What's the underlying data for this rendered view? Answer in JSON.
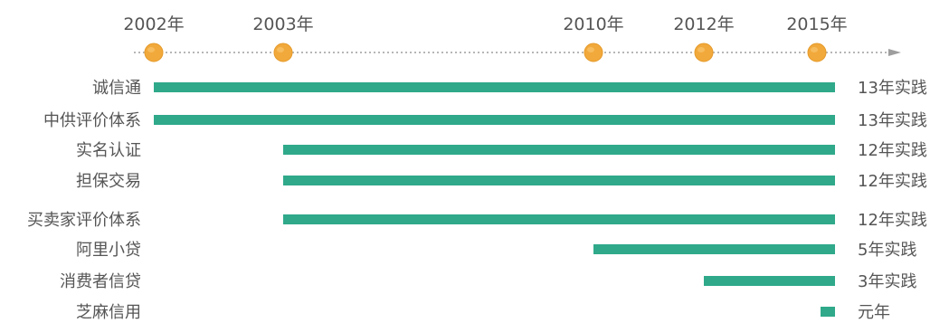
{
  "chart_data": {
    "type": "bar",
    "orientation": "horizontal",
    "title": "",
    "timeline": {
      "years": [
        "2002年",
        "2003年",
        "2010年",
        "2012年",
        "2015年"
      ],
      "marker_color": "#F2A93B",
      "axis_color": "#9E9E9E"
    },
    "bar_color": "#2FA98A",
    "categories": [
      "诚信通",
      "中供评价体系",
      "实名认证",
      "担保交易",
      "买卖家评价体系",
      "阿里小贷",
      "消费者信贷",
      "芝麻信用"
    ],
    "series": [
      {
        "start": [
          2002,
          2002,
          2003,
          2003,
          2003,
          2010,
          2012,
          2015
        ],
        "end": [
          2015,
          2015,
          2015,
          2015,
          2015,
          2015,
          2015,
          2015
        ],
        "value_labels": [
          "13年实践",
          "13年实践",
          "12年实践",
          "12年实践",
          "12年实践",
          "5年实践",
          "3年实践",
          "元年"
        ]
      }
    ]
  }
}
